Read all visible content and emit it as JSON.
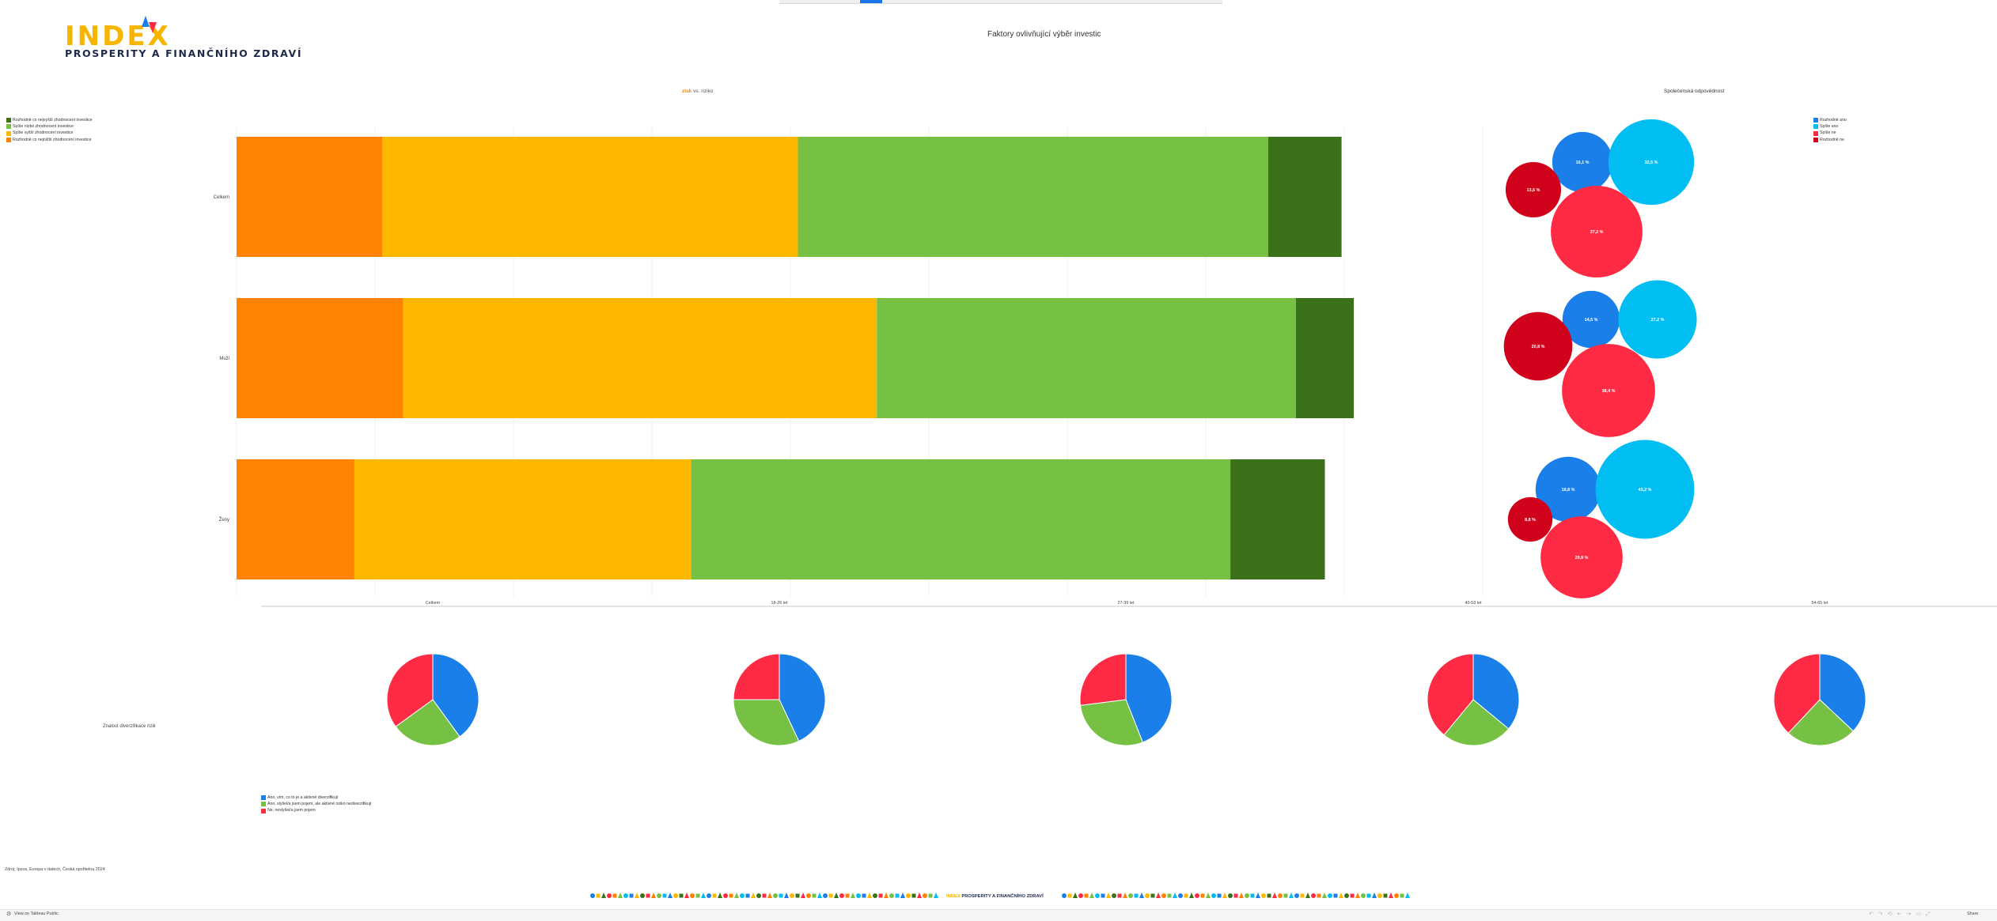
{
  "logo": {
    "title": "INDEX",
    "subtitle": "PROSPERITY A FINANČNÍHO ZDRAVÍ"
  },
  "main_title": "Faktory ovlivňující výběr investic",
  "left_header": {
    "highlight": "zisk",
    "rest": " vs. riziko"
  },
  "right_header": "Společenská odpovědnost",
  "pies_label": "Znalost diverzifikace rizik",
  "source": "Zdroj: Ipsos, Evropa v datech, Česká spořitelna 2024",
  "footer": {
    "view_link": "View on Tableau Public",
    "share": "Share",
    "strip_logo_highlight": "INDEX",
    "strip_logo_rest": " PROSPERITY A FINANČNÍHO ZDRAVÍ"
  },
  "chart_data": [
    {
      "type": "bar",
      "orientation": "horizontal",
      "stacked": true,
      "title": "zisk vs. riziko",
      "categories": [
        "Celkem",
        "Muži",
        "Ženy"
      ],
      "series": [
        {
          "name": "Rozhodně co nejvyšší zhodnocení investice",
          "color": "#ff8200",
          "values": [
            13.1,
            15.0,
            10.6
          ]
        },
        {
          "name": "Spíše vyšší zhodnocení investice",
          "color": "#ffb800",
          "values": [
            37.4,
            42.6,
            30.3
          ]
        },
        {
          "name": "Spíše nízké zhodnocení investice",
          "color": "#76c043",
          "values": [
            42.3,
            37.7,
            48.5
          ]
        },
        {
          "name": "Rozhodně co nejnižší zhodnocení investice",
          "color": "#3b7119",
          "values": [
            6.6,
            5.2,
            8.5
          ]
        }
      ],
      "legend_order": [
        "Rozhodně co nejvyšší zhodnocení investice",
        "Spíše nízké zhodnocení investice",
        "Spíše vyšší zhodnocení investice",
        "Rozhodně co nejnižší zhodnocení investice"
      ],
      "legend_colors": [
        "#3b7119",
        "#76c043",
        "#ffb800",
        "#ff8200"
      ],
      "legend_placement": "top-left",
      "grid": true
    },
    {
      "type": "scatter",
      "subtype": "packed-bubble",
      "title": "Společenská odpovědnost",
      "categories": [
        "Celkem",
        "Muži",
        "Ženy"
      ],
      "series": [
        {
          "name": "Rozhodně ano",
          "color": "#1a7fe8",
          "values": [
            16.1,
            14.5,
            18.8
          ]
        },
        {
          "name": "Spíše ano",
          "color": "#00bdf2",
          "values": [
            32.5,
            27.2,
            43.2
          ]
        },
        {
          "name": "Spíše ne",
          "color": "#ff2a44",
          "values": [
            37.2,
            38.4,
            29.8
          ]
        },
        {
          "name": "Rozhodně ne",
          "color": "#d0021b",
          "values": [
            13.6,
            20.8,
            8.8
          ]
        }
      ],
      "labels": [
        [
          "16,1 %",
          "32,5 %",
          "37,2 %",
          "13,6 %"
        ],
        [
          "14,5 %",
          "27,2 %",
          "38,4 %",
          "20,8 %"
        ],
        [
          "18,8 %",
          "43,2 %",
          "29,8 %",
          "8,8 %"
        ]
      ],
      "legend_placement": "top-right"
    },
    {
      "type": "pie",
      "title": "Znalost diverzifikace rizik",
      "x_axis_labels": [
        "Celkem",
        "18-26 let",
        "27-39 let",
        "40-53 let",
        "54-65 let"
      ],
      "slices": [
        "Ano, vím, co to je a aktivně diverzifikuji",
        "Ano, slyšel/a jsem pojem, ale aktivně riziko nediverzifikuji",
        "Ne, neslyšel/a jsem pojem"
      ],
      "colors": [
        "#1a7fe8",
        "#76c043",
        "#ff2a44"
      ],
      "pies": [
        {
          "label": "Celkem",
          "values": [
            40,
            25,
            35
          ]
        },
        {
          "label": "18-26 let",
          "values": [
            43,
            32,
            25
          ]
        },
        {
          "label": "27-39 let",
          "values": [
            44,
            29,
            27
          ]
        },
        {
          "label": "40-53 let",
          "values": [
            36,
            25,
            39
          ]
        },
        {
          "label": "54-65 let",
          "values": [
            37,
            25,
            38
          ]
        }
      ],
      "legend_placement": "bottom-left"
    }
  ]
}
